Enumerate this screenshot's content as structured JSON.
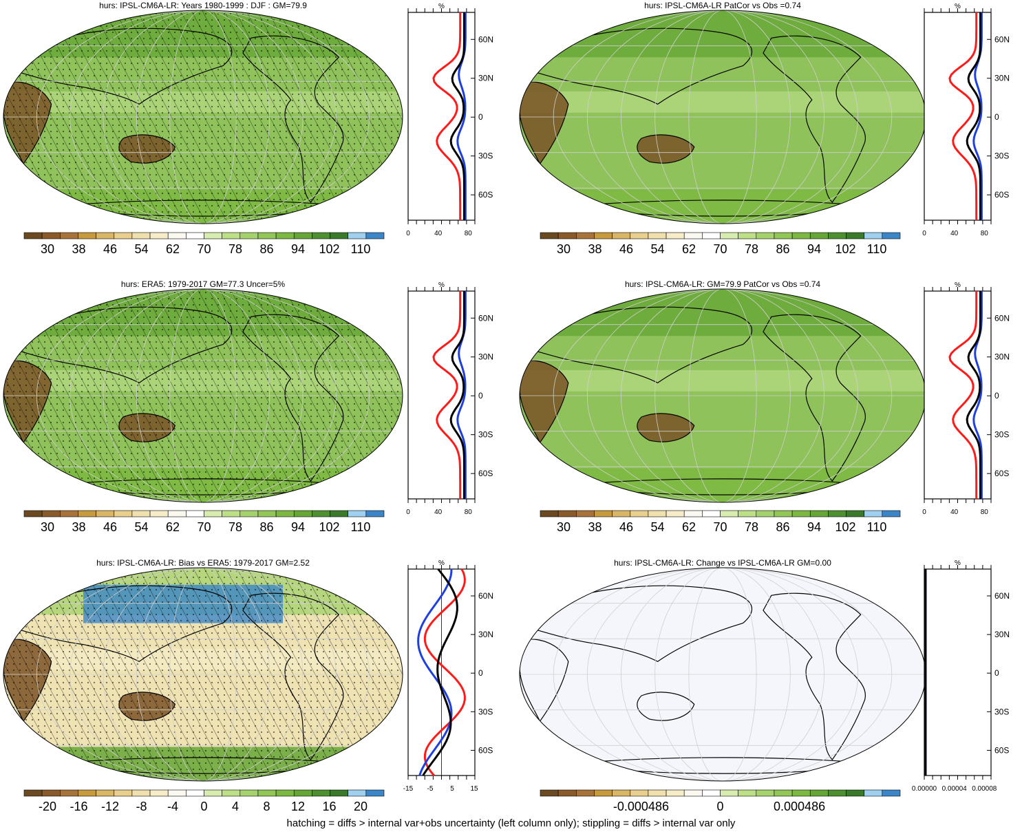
{
  "footer": "hatching = diffs > internal var+obs uncertainty (left column only); stippling = diffs > internal var only",
  "colors": {
    "scale": [
      "#6b4a22",
      "#8a5a2b",
      "#a8733a",
      "#c79a3e",
      "#d9b566",
      "#e8cf8e",
      "#f0e0ad",
      "#f6ecc8",
      "#fbf8f0",
      "#ffffff",
      "#d9ecb0",
      "#bde087",
      "#a6d26e",
      "#92c657",
      "#7cb842",
      "#66a637",
      "#4e8f30",
      "#3b7a2a",
      "#9fd0f0",
      "#3c86c8"
    ],
    "precip_map_fill": "#8fc25a",
    "land_line": "#000000",
    "zonal_model": "#000000",
    "zonal_obs": "#ff1a1a",
    "zonal_other": "#1f3fdf",
    "empty_map": "#f4f6fb"
  },
  "chart_data": [
    {
      "id": "model-mean",
      "type": "heatmap",
      "title": "hurs: IPSL-CM6A-LR: Years 1980-1999 : DJF : GM=79.9",
      "hatching": true,
      "stippling": true,
      "colorbar_ticks": [
        "30",
        "38",
        "46",
        "54",
        "62",
        "70",
        "78",
        "86",
        "94",
        "102",
        "110"
      ],
      "zonal_profile": {
        "unit": "%",
        "xticks": [
          "0",
          "40",
          "80"
        ],
        "xlim": [
          0,
          100
        ],
        "lat_labels": [
          "60N",
          "30N",
          "0",
          "30S",
          "60S"
        ]
      }
    },
    {
      "id": "model-patcor",
      "type": "heatmap",
      "title": "hurs: IPSL-CM6A-LR PatCor vs Obs =0.74",
      "hatching": false,
      "stippling": false,
      "colorbar_ticks": [
        "30",
        "38",
        "46",
        "54",
        "62",
        "70",
        "78",
        "86",
        "94",
        "102",
        "110"
      ],
      "zonal_profile": {
        "unit": "%",
        "xticks": [
          "0",
          "40",
          "80"
        ],
        "xlim": [
          0,
          100
        ],
        "lat_labels": [
          "60N",
          "30N",
          "0",
          "30S",
          "60S"
        ]
      }
    },
    {
      "id": "era5-obs",
      "type": "heatmap",
      "title": "hurs: ERA5: 1979-2017 GM=77.3 Uncer=5%",
      "hatching": true,
      "stippling": true,
      "colorbar_ticks": [
        "30",
        "38",
        "46",
        "54",
        "62",
        "70",
        "78",
        "86",
        "94",
        "102",
        "110"
      ],
      "zonal_profile": {
        "unit": "%",
        "xticks": [
          "0",
          "40",
          "80"
        ],
        "xlim": [
          0,
          100
        ],
        "lat_labels": [
          "60N",
          "30N",
          "0",
          "30S",
          "60S"
        ]
      }
    },
    {
      "id": "model-gm",
      "type": "heatmap",
      "title": "hurs: IPSL-CM6A-LR: GM=79.9 PatCor vs Obs =0.74",
      "hatching": false,
      "stippling": false,
      "colorbar_ticks": [
        "30",
        "38",
        "46",
        "54",
        "62",
        "70",
        "78",
        "86",
        "94",
        "102",
        "110"
      ],
      "zonal_profile": {
        "unit": "%",
        "xticks": [
          "0",
          "40",
          "80"
        ],
        "xlim": [
          0,
          100
        ],
        "lat_labels": [
          "60N",
          "30N",
          "0",
          "30S",
          "60S"
        ]
      }
    },
    {
      "id": "bias",
      "type": "heatmap",
      "title": "hurs: IPSL-CM6A-LR: Bias vs ERA5: 1979-2017 GM=2.52",
      "hatching": true,
      "stippling": true,
      "colorbar_ticks": [
        "-20",
        "-16",
        "-12",
        "-8",
        "-4",
        "0",
        "4",
        "8",
        "12",
        "16",
        "20"
      ],
      "zonal_profile": {
        "unit": "%",
        "xticks": [
          "-15",
          "-5",
          "5",
          "15"
        ],
        "xlim": [
          -15,
          15
        ],
        "lat_labels": [
          "60N",
          "30N",
          "0",
          "30S",
          "60S"
        ]
      }
    },
    {
      "id": "change",
      "type": "heatmap",
      "title": "hurs: IPSL-CM6A-LR: Change vs IPSL-CM6A-LR GM=0.00",
      "hatching": false,
      "stippling": false,
      "colorbar_ticks": [
        "-0.000486",
        "0",
        "0.000486"
      ],
      "zonal_profile": {
        "unit": "%",
        "xticks": [
          "0.00000",
          "0.00004",
          "0.00008"
        ],
        "xlim": [
          0,
          0.0001
        ],
        "lat_labels": [
          "60N",
          "30N",
          "0",
          "30S",
          "60S"
        ]
      }
    }
  ]
}
